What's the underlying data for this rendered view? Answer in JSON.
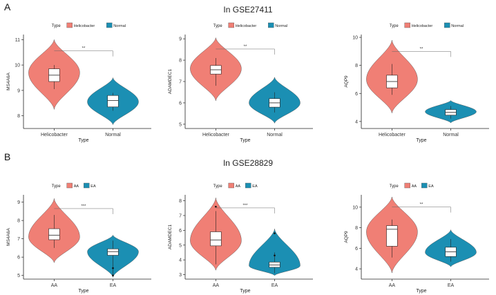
{
  "figure": {
    "panels": [
      {
        "letter": "A",
        "title": "In GSE27411"
      },
      {
        "letter": "B",
        "title": "In GSE28829"
      }
    ]
  },
  "colors": {
    "group1": "#F07F75",
    "group2": "#1B8FB3",
    "axis": "#222222",
    "box_fill": "#ffffff"
  },
  "chart_data": [
    {
      "type": "violin",
      "panel": "A",
      "legend": {
        "title": "Type",
        "entries": [
          "Helicobacter",
          "Normal"
        ],
        "placement": "top"
      },
      "xlabel": "Type",
      "ylabel": "MS4A6A",
      "categories": [
        "Helicobacter",
        "Normal"
      ],
      "ylim": [
        7.5,
        11.2
      ],
      "yticks": [
        8,
        9,
        10,
        11
      ],
      "significance": "**",
      "series": [
        {
          "name": "Helicobacter",
          "min": 8.25,
          "max": 11.0,
          "box": {
            "q1": 9.35,
            "median": 9.6,
            "q3": 9.85
          },
          "whisker": [
            9.05,
            10.0
          ],
          "mode": 9.7
        },
        {
          "name": "Normal",
          "min": 7.65,
          "max": 9.5,
          "box": {
            "q1": 8.35,
            "median": 8.6,
            "q3": 8.8
          },
          "whisker": [
            8.2,
            8.9
          ],
          "mode": 8.55
        }
      ]
    },
    {
      "type": "violin",
      "panel": "A",
      "legend": {
        "title": "Type",
        "entries": [
          "Helicobacter",
          "Normal"
        ],
        "placement": "top"
      },
      "xlabel": "Type",
      "ylabel": "ADAMDEC1",
      "categories": [
        "Helicobacter",
        "Normal"
      ],
      "ylim": [
        4.8,
        9.2
      ],
      "yticks": [
        5,
        6,
        7,
        8,
        9
      ],
      "significance": "**",
      "series": [
        {
          "name": "Helicobacter",
          "min": 6.1,
          "max": 9.05,
          "box": {
            "q1": 7.35,
            "median": 7.55,
            "q3": 7.75
          },
          "whisker": [
            6.8,
            8.1
          ],
          "mode": 7.6
        },
        {
          "name": "Normal",
          "min": 5.05,
          "max": 7.2,
          "box": {
            "q1": 5.8,
            "median": 6.0,
            "q3": 6.2
          },
          "whisker": [
            5.55,
            6.5
          ],
          "mode": 6.0
        }
      ]
    },
    {
      "type": "violin",
      "panel": "A",
      "legend": {
        "title": "Type",
        "entries": [
          "Helicobacter",
          "Normal"
        ],
        "placement": "top"
      },
      "xlabel": "Type",
      "ylabel": "AQP9",
      "categories": [
        "Helicobacter",
        "Normal"
      ],
      "ylim": [
        3.5,
        10.2
      ],
      "yticks": [
        4,
        6,
        8,
        10
      ],
      "significance": "**",
      "series": [
        {
          "name": "Helicobacter",
          "min": 4.6,
          "max": 9.8,
          "box": {
            "q1": 6.4,
            "median": 6.85,
            "q3": 7.3
          },
          "whisker": [
            5.9,
            8.1
          ],
          "mode": 7.0
        },
        {
          "name": "Normal",
          "min": 3.9,
          "max": 5.5,
          "box": {
            "q1": 4.45,
            "median": 4.65,
            "q3": 4.85
          },
          "whisker": [
            4.2,
            5.1
          ],
          "mode": 4.7
        }
      ]
    },
    {
      "type": "violin",
      "panel": "B",
      "legend": {
        "title": "Type",
        "entries": [
          "AA",
          "EA"
        ],
        "placement": "top"
      },
      "xlabel": "Type",
      "ylabel": "MS4A6A",
      "categories": [
        "AA",
        "EA"
      ],
      "ylim": [
        4.8,
        9.4
      ],
      "yticks": [
        5,
        6,
        7,
        8,
        9
      ],
      "significance": "***",
      "series": [
        {
          "name": "AA",
          "min": 5.7,
          "max": 9.2,
          "box": {
            "q1": 6.95,
            "median": 7.2,
            "q3": 7.55
          },
          "whisker": [
            6.5,
            8.3
          ],
          "mode": 7.1
        },
        {
          "name": "EA",
          "min": 4.9,
          "max": 7.2,
          "box": {
            "q1": 6.1,
            "median": 6.3,
            "q3": 6.45
          },
          "whisker": [
            5.0,
            6.9
          ],
          "mode": 6.3,
          "outliers": [
            5.4,
            5.0
          ]
        }
      ]
    },
    {
      "type": "violin",
      "panel": "B",
      "legend": {
        "title": "Type",
        "entries": [
          "AA",
          "EA"
        ],
        "placement": "top"
      },
      "xlabel": "Type",
      "ylabel": "ADAMDEC1",
      "categories": [
        "AA",
        "EA"
      ],
      "ylim": [
        2.7,
        8.4
      ],
      "yticks": [
        3,
        4,
        5,
        6,
        7,
        8
      ],
      "significance": "***",
      "series": [
        {
          "name": "AA",
          "min": 3.3,
          "max": 8.2,
          "box": {
            "q1": 4.95,
            "median": 5.35,
            "q3": 5.9
          },
          "whisker": [
            3.7,
            7.3
          ],
          "mode": 5.3,
          "outliers": [
            7.6
          ]
        },
        {
          "name": "EA",
          "min": 2.95,
          "max": 6.1,
          "box": {
            "q1": 3.5,
            "median": 3.65,
            "q3": 3.85
          },
          "whisker": [
            3.1,
            4.5
          ],
          "mode": 3.6,
          "outliers": [
            5.8,
            4.3
          ]
        }
      ]
    },
    {
      "type": "violin",
      "panel": "B",
      "legend": {
        "title": "Type",
        "entries": [
          "AA",
          "EA"
        ],
        "placement": "top"
      },
      "xlabel": "Type",
      "ylabel": "AQP9",
      "categories": [
        "AA",
        "EA"
      ],
      "ylim": [
        3.0,
        11.2
      ],
      "yticks": [
        4,
        6,
        8,
        10
      ],
      "significance": "**",
      "series": [
        {
          "name": "AA",
          "min": 3.6,
          "max": 11.0,
          "box": {
            "q1": 6.2,
            "median": 7.85,
            "q3": 8.2
          },
          "whisker": [
            5.1,
            8.8
          ],
          "mode": 7.6
        },
        {
          "name": "EA",
          "min": 4.2,
          "max": 7.8,
          "box": {
            "q1": 5.2,
            "median": 5.65,
            "q3": 6.1
          },
          "whisker": [
            4.7,
            6.9
          ],
          "mode": 5.6
        }
      ]
    }
  ]
}
